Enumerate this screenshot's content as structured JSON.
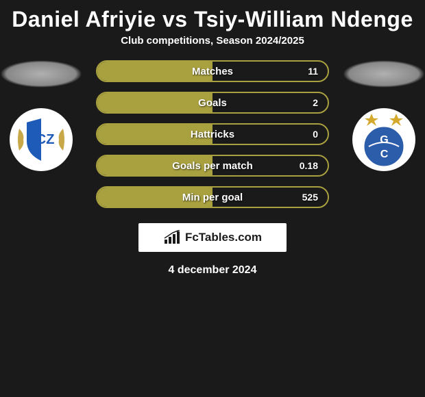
{
  "header": {
    "player1": "Daniel Afriyie",
    "vs": "vs",
    "player2": "Tsiy-William Ndenge",
    "subtitle": "Club competitions, Season 2024/2025"
  },
  "colors": {
    "background": "#1a1a1a",
    "title_text": "#ffffff",
    "stat_border": "#a9a13f",
    "stat_fill": "#a9a13f",
    "stat_text": "#ffffff",
    "brand_bg": "#ffffff",
    "brand_text": "#1a1a1a",
    "club_badge_bg": "#ffffff",
    "fcz_blue": "#1e5bb8",
    "fcz_gold": "#c9a84a",
    "gc_blue": "#2b5daa",
    "gc_star": "#d4a92e"
  },
  "typography": {
    "title_fontsize": 32,
    "title_weight": 900,
    "subtitle_fontsize": 15,
    "stat_label_fontsize": 15,
    "stat_value_fontsize": 14,
    "brand_fontsize": 17,
    "date_fontsize": 16
  },
  "layout": {
    "stat_bar_width": 340,
    "stat_bar_height": 32,
    "stat_bar_radius": 16,
    "stat_gap": 14,
    "fill_ratio": 0.5
  },
  "stats": [
    {
      "label": "Matches",
      "value": "11"
    },
    {
      "label": "Goals",
      "value": "2"
    },
    {
      "label": "Hattricks",
      "value": "0"
    },
    {
      "label": "Goals per match",
      "value": "0.18"
    },
    {
      "label": "Min per goal",
      "value": "525"
    }
  ],
  "brand": {
    "text": "FcTables.com"
  },
  "date": "4 december 2024",
  "clubs": {
    "left": {
      "name": "FC Zürich",
      "badge": "fcz"
    },
    "right": {
      "name": "Grasshopper Club",
      "badge": "gc"
    }
  }
}
